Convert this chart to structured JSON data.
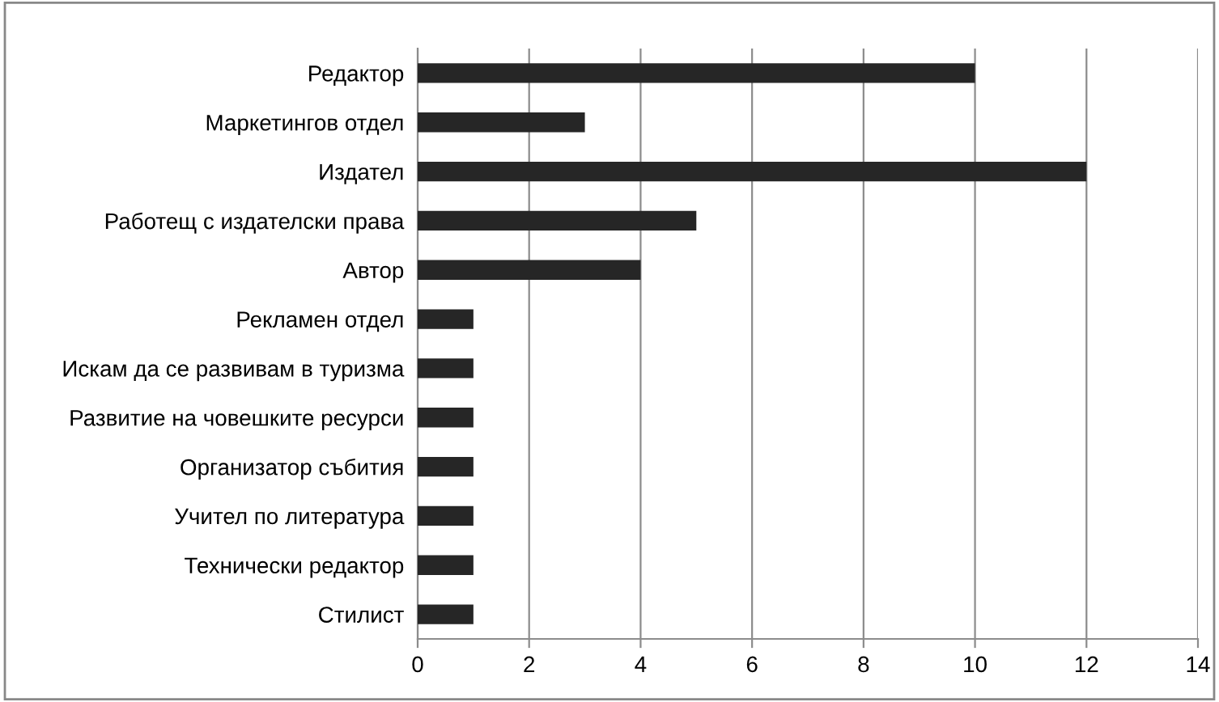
{
  "chart_data": {
    "type": "bar",
    "orientation": "horizontal",
    "categories": [
      "Редактор",
      "Маркетингов отдел",
      "Издател",
      "Работещ с издателски права",
      "Автор",
      "Рекламен отдел",
      "Искам да се развивам в туризма",
      "Развитие на човешките ресурси",
      "Организатор събития",
      "Учител по литература",
      "Технически редактор",
      "Стилист"
    ],
    "values": [
      10,
      3,
      12,
      5,
      4,
      1,
      1,
      1,
      1,
      1,
      1,
      1
    ],
    "color": "#262626",
    "xlim": [
      0,
      14
    ],
    "xticks": [
      0,
      2,
      4,
      6,
      8,
      10,
      12,
      14
    ],
    "grid": "x",
    "legend": false
  }
}
